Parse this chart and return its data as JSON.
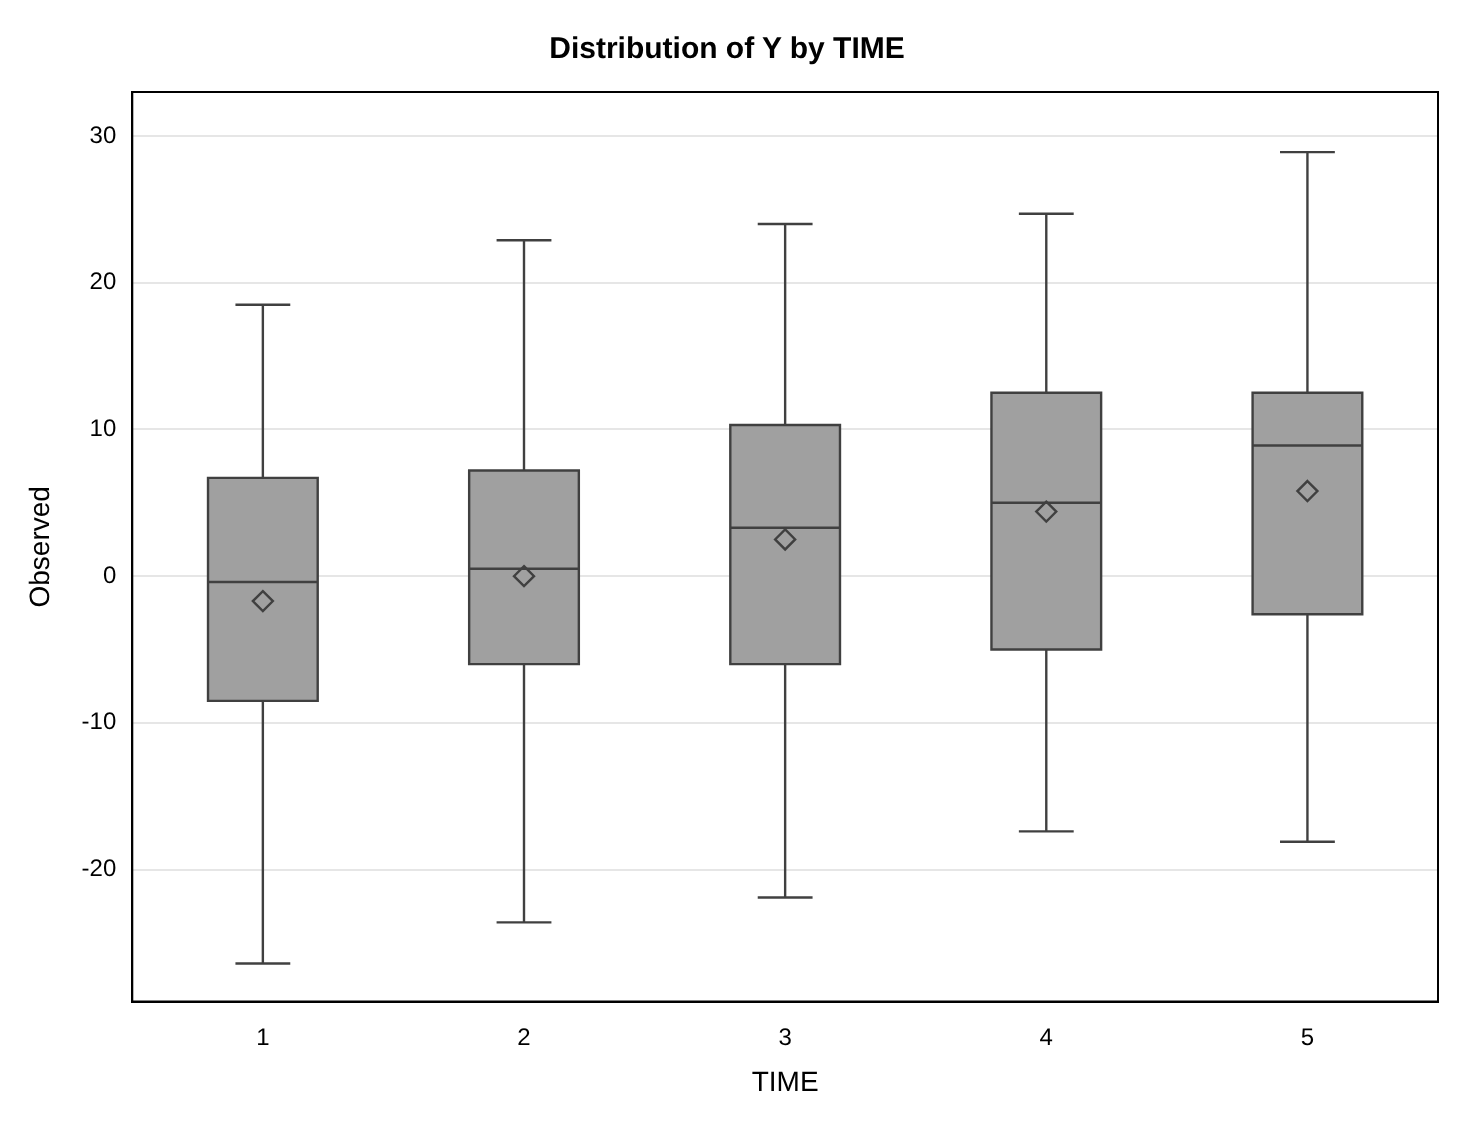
{
  "chart_data": {
    "type": "box",
    "title": "Distribution of Y by TIME",
    "xlabel": "TIME",
    "ylabel": "Observed",
    "categories": [
      "1",
      "2",
      "3",
      "4",
      "5"
    ],
    "color": "#a0a0a0",
    "boxes": [
      {
        "low": -26.4,
        "q1": -8.5,
        "median": -0.4,
        "q3": 6.7,
        "high": 18.5,
        "mean": -1.7
      },
      {
        "low": -23.6,
        "q1": -6.0,
        "median": 0.5,
        "q3": 7.2,
        "high": 22.9,
        "mean": 0
      },
      {
        "low": -21.9,
        "q1": -6.0,
        "median": 3.3,
        "q3": 10.3,
        "high": 24.0,
        "mean": 2.5
      },
      {
        "low": -17.4,
        "q1": -5.0,
        "median": 5.0,
        "q3": 12.5,
        "high": 24.7,
        "mean": 4.4
      },
      {
        "low": -18.1,
        "q1": -2.6,
        "median": 8.9,
        "q3": 12.5,
        "high": 28.9,
        "mean": 5.8
      }
    ],
    "ylim": [
      -29,
      33
    ],
    "yticks": [
      -20,
      -10,
      0,
      10,
      20,
      30
    ],
    "grid": "y",
    "legend": false
  }
}
